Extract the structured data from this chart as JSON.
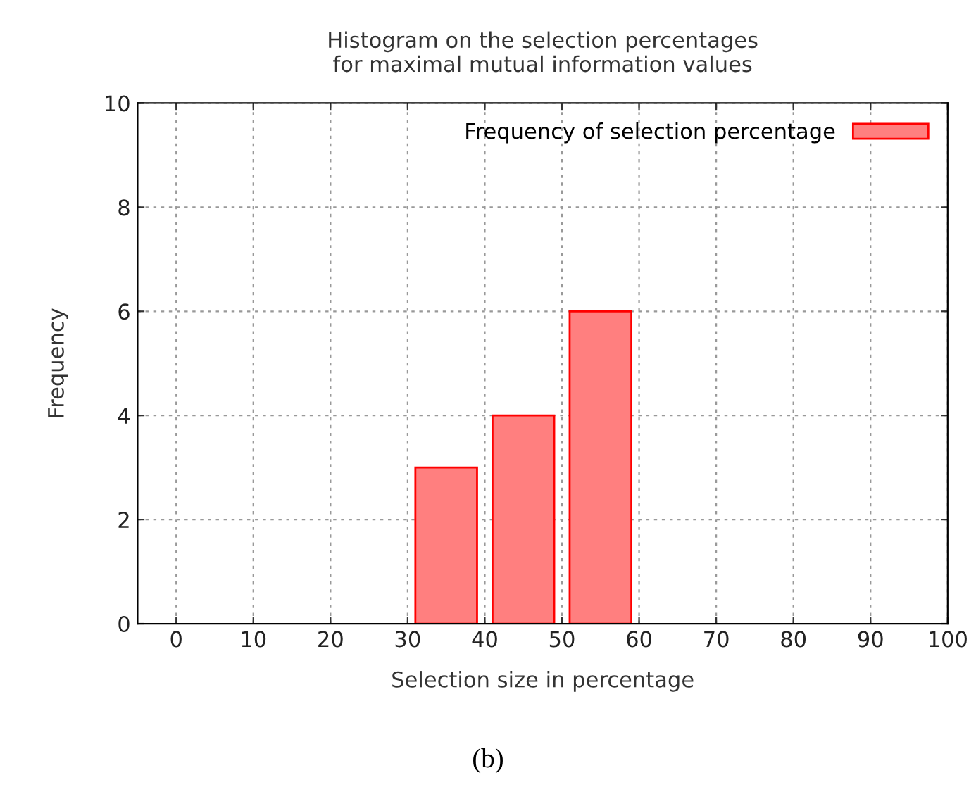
{
  "chart_data": {
    "type": "bar",
    "title": "Histogram on the selection percentages\nfor maximal mutual information values",
    "xlabel": "Selection size in percentage",
    "ylabel": "Frequency",
    "x": [
      35,
      45,
      55
    ],
    "series": [
      {
        "name": "Frequency of selection percentage",
        "color": "#ff7f7f",
        "values": [
          3,
          4,
          6
        ]
      }
    ],
    "xlim": [
      -5,
      100
    ],
    "xticks": [
      0,
      10,
      20,
      30,
      40,
      50,
      60,
      70,
      80,
      90,
      100
    ],
    "ylim": [
      0,
      10
    ],
    "yticks": [
      0,
      2,
      4,
      6,
      8,
      10
    ],
    "grid": true,
    "legend": "top right",
    "annotations": [
      "(b)"
    ]
  }
}
